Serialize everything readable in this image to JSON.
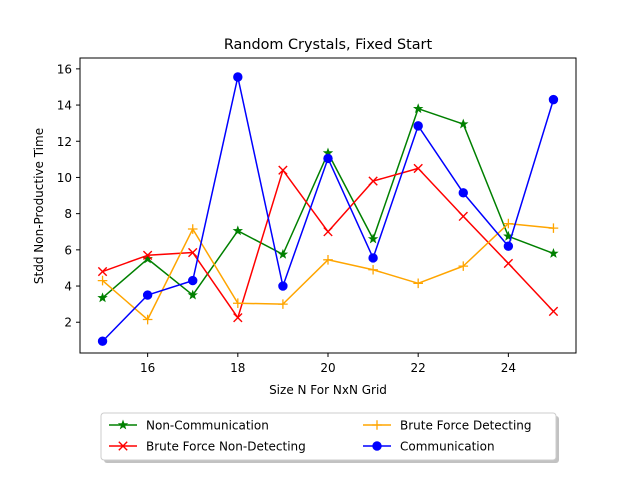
{
  "chart_data": {
    "type": "line",
    "title": "Random Crystals, Fixed Start",
    "xlabel": "Size N For NxN Grid",
    "ylabel": "Stdd Non-Productive Time",
    "xlim": [
      14.5,
      25.5
    ],
    "ylim": [
      0.3,
      16.6
    ],
    "xticks": [
      16,
      18,
      20,
      22,
      24
    ],
    "yticks": [
      2,
      4,
      6,
      8,
      10,
      12,
      14,
      16
    ],
    "grid": false,
    "legend_position": "bottom-center, outside plot, 2 columns",
    "x": [
      15,
      16,
      17,
      18,
      19,
      20,
      21,
      22,
      23,
      24,
      25
    ],
    "series": [
      {
        "name": "Non-Communication",
        "color": "#008000",
        "marker": "star",
        "values": [
          3.35,
          5.5,
          3.5,
          7.05,
          5.75,
          11.35,
          6.6,
          13.8,
          12.95,
          6.75,
          5.8
        ]
      },
      {
        "name": "Brute Force Non-Detecting",
        "color": "#ff0000",
        "marker": "x",
        "values": [
          4.8,
          5.7,
          5.85,
          2.25,
          10.4,
          7.0,
          9.8,
          10.5,
          7.85,
          5.25,
          2.6
        ]
      },
      {
        "name": "Brute Force Detecting",
        "color": "#ffa500",
        "marker": "plus",
        "values": [
          4.3,
          2.15,
          7.15,
          3.05,
          3.0,
          5.45,
          4.9,
          4.15,
          5.1,
          7.45,
          7.2
        ]
      },
      {
        "name": "Communication",
        "color": "#0000ff",
        "marker": "circle",
        "values": [
          0.95,
          3.5,
          4.3,
          15.55,
          4.0,
          11.05,
          5.55,
          12.85,
          9.15,
          6.2,
          14.3
        ]
      }
    ],
    "legend_order": [
      0,
      1,
      2,
      3
    ]
  }
}
